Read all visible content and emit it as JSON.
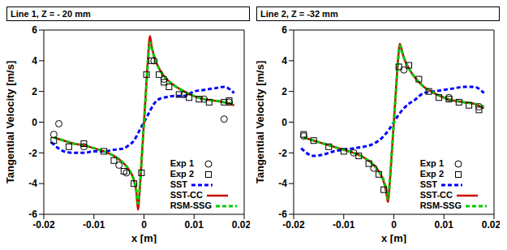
{
  "chart_data": [
    {
      "type": "line",
      "title": "Line 1, Z = - 20 mm",
      "x_label": "x [m]",
      "y_label": "Tangential Velocity [m/s]",
      "xlim": [
        -0.02,
        0.02
      ],
      "xticks": [
        -0.02,
        -0.01,
        0,
        0.01,
        0.02
      ],
      "ylim": [
        -6,
        6
      ],
      "yticks": [
        -6,
        -4,
        -2,
        0,
        2,
        4,
        6
      ],
      "grid": false,
      "legend": "lower right",
      "series": [
        {
          "name": "Exp 1",
          "type": "scatter",
          "marker": "circle",
          "color": "#000000",
          "x": [
            -0.018,
            -0.017,
            -0.012,
            -0.005,
            -0.0035,
            0.002,
            0.004,
            0.008,
            0.012,
            0.016,
            0.017
          ],
          "values": [
            -0.8,
            -0.1,
            -1.6,
            -2.8,
            -3.3,
            4.0,
            2.8,
            1.8,
            1.5,
            0.2,
            1.3
          ]
        },
        {
          "name": "Exp 2",
          "type": "scatter",
          "marker": "square",
          "color": "#000000",
          "x": [
            -0.018,
            -0.015,
            -0.012,
            -0.008,
            -0.006,
            -0.004,
            -0.002,
            -0.0005,
            0.0005,
            0.0015,
            0.003,
            0.004,
            0.005,
            0.007,
            0.009,
            0.011,
            0.013,
            0.016,
            0.017
          ],
          "values": [
            -1.2,
            -1.6,
            -1.4,
            -1.9,
            -2.5,
            -3.2,
            -4.0,
            -3.3,
            3.1,
            4.0,
            3.1,
            2.6,
            2.3,
            1.8,
            1.6,
            1.5,
            1.3,
            1.3,
            1.4
          ]
        },
        {
          "name": "SST",
          "type": "line",
          "line_style": "dashed",
          "color": "#0000ff",
          "x": [
            -0.0185,
            -0.016,
            -0.014,
            -0.012,
            -0.01,
            -0.008,
            -0.006,
            -0.004,
            -0.003,
            -0.002,
            -0.001,
            0,
            0.001,
            0.002,
            0.003,
            0.004,
            0.006,
            0.008,
            0.01,
            0.012,
            0.014,
            0.016,
            0.018
          ],
          "values": [
            -1.3,
            -1.9,
            -2.0,
            -2.0,
            -1.9,
            -1.9,
            -1.8,
            -1.7,
            -1.5,
            -1.2,
            -0.6,
            0,
            0.6,
            1.2,
            1.5,
            1.6,
            1.7,
            1.7,
            2.0,
            2.1,
            2.2,
            2.3,
            1.9
          ]
        },
        {
          "name": "SST-CC",
          "type": "line",
          "line_style": "solid",
          "color": "#cc0000",
          "x": [
            -0.018,
            -0.016,
            -0.014,
            -0.012,
            -0.01,
            -0.008,
            -0.006,
            -0.004,
            -0.003,
            -0.002,
            -0.0015,
            -0.0012,
            -0.0008,
            -0.0004,
            0,
            0.0004,
            0.0008,
            0.0012,
            0.0015,
            0.002,
            0.003,
            0.004,
            0.006,
            0.008,
            0.01,
            0.012,
            0.014,
            0.016,
            0.018
          ],
          "values": [
            -1.0,
            -1.2,
            -1.4,
            -1.5,
            -1.7,
            -1.9,
            -2.2,
            -2.7,
            -3.1,
            -3.8,
            -4.6,
            -5.7,
            -4.2,
            -2.1,
            0,
            2.1,
            4.2,
            5.6,
            5.0,
            4.3,
            3.5,
            3.0,
            2.4,
            2.0,
            1.7,
            1.5,
            1.4,
            1.3,
            1.1
          ]
        },
        {
          "name": "RSM-SSG",
          "type": "line",
          "line_style": "dashed",
          "color": "#00cc00",
          "x": [
            -0.018,
            -0.016,
            -0.014,
            -0.012,
            -0.01,
            -0.008,
            -0.006,
            -0.004,
            -0.003,
            -0.002,
            -0.0015,
            -0.0012,
            -0.0008,
            -0.0004,
            0,
            0.0004,
            0.0008,
            0.0012,
            0.0015,
            0.002,
            0.003,
            0.004,
            0.006,
            0.008,
            0.01,
            0.012,
            0.014,
            0.016,
            0.018
          ],
          "values": [
            -1.0,
            -1.2,
            -1.4,
            -1.5,
            -1.7,
            -1.9,
            -2.2,
            -2.7,
            -3.1,
            -3.8,
            -4.5,
            -5.3,
            -4.0,
            -2.0,
            0,
            2.0,
            4.0,
            5.2,
            4.9,
            4.3,
            3.5,
            3.0,
            2.4,
            2.0,
            1.7,
            1.5,
            1.4,
            1.3,
            1.2
          ]
        }
      ]
    },
    {
      "type": "line",
      "title": "Line 2, Z = -32 mm",
      "x_label": "x [m]",
      "y_label": "Tangential Velocity [m/s]",
      "xlim": [
        -0.02,
        0.02
      ],
      "xticks": [
        -0.02,
        -0.01,
        0,
        0.01,
        0.02
      ],
      "ylim": [
        -6,
        6
      ],
      "yticks": [
        -6,
        -4,
        -2,
        0,
        2,
        4,
        6
      ],
      "grid": false,
      "legend": "lower right",
      "series": [
        {
          "name": "Exp 1",
          "type": "scatter",
          "marker": "circle",
          "color": "#000000",
          "x": [
            -0.018,
            -0.008,
            -0.004,
            0.002,
            0.011,
            0.017
          ],
          "values": [
            -0.9,
            -2.0,
            -3.0,
            3.4,
            1.6,
            1.0
          ]
        },
        {
          "name": "Exp 2",
          "type": "scatter",
          "marker": "square",
          "color": "#000000",
          "x": [
            -0.018,
            -0.016,
            -0.013,
            -0.01,
            -0.007,
            -0.005,
            -0.003,
            -0.002,
            0.001,
            0.003,
            0.005,
            0.007,
            0.009,
            0.011,
            0.013,
            0.015,
            0.017
          ],
          "values": [
            -0.8,
            -1.2,
            -1.6,
            -1.9,
            -2.2,
            -2.7,
            -3.4,
            -4.4,
            3.6,
            3.7,
            2.8,
            2.0,
            1.6,
            1.5,
            1.3,
            1.1,
            0.8
          ]
        },
        {
          "name": "SST",
          "type": "line",
          "line_style": "dashed",
          "color": "#0000ff",
          "x": [
            -0.0185,
            -0.016,
            -0.014,
            -0.012,
            -0.01,
            -0.008,
            -0.006,
            -0.004,
            -0.003,
            -0.002,
            -0.001,
            0,
            0.001,
            0.002,
            0.003,
            0.004,
            0.006,
            0.008,
            0.01,
            0.012,
            0.014,
            0.016,
            0.018
          ],
          "values": [
            -1.7,
            -2.2,
            -2.1,
            -1.9,
            -1.8,
            -1.7,
            -1.6,
            -1.4,
            -1.2,
            -0.9,
            -0.5,
            0,
            0.5,
            0.9,
            1.2,
            1.4,
            1.9,
            2.0,
            2.1,
            2.2,
            2.3,
            2.3,
            1.9
          ]
        },
        {
          "name": "SST-CC",
          "type": "line",
          "line_style": "solid",
          "color": "#cc0000",
          "x": [
            -0.018,
            -0.016,
            -0.014,
            -0.012,
            -0.01,
            -0.008,
            -0.006,
            -0.004,
            -0.003,
            -0.002,
            -0.0015,
            -0.0012,
            -0.0008,
            -0.0004,
            0,
            0.0004,
            0.0008,
            0.0012,
            0.0015,
            0.002,
            0.003,
            0.004,
            0.006,
            0.008,
            0.01,
            0.012,
            0.014,
            0.016,
            0.018
          ],
          "values": [
            -1.0,
            -1.2,
            -1.4,
            -1.6,
            -1.8,
            -2.0,
            -2.3,
            -2.8,
            -3.2,
            -3.9,
            -4.6,
            -5.2,
            -3.9,
            -2.0,
            0,
            2.0,
            3.9,
            5.1,
            4.8,
            4.2,
            3.5,
            3.0,
            2.3,
            1.9,
            1.6,
            1.4,
            1.3,
            1.2,
            0.9
          ]
        },
        {
          "name": "RSM-SSG",
          "type": "line",
          "line_style": "dashed",
          "color": "#00cc00",
          "x": [
            -0.018,
            -0.016,
            -0.014,
            -0.012,
            -0.01,
            -0.008,
            -0.006,
            -0.004,
            -0.003,
            -0.002,
            -0.0015,
            -0.0012,
            -0.0008,
            -0.0004,
            0,
            0.0004,
            0.0008,
            0.0012,
            0.0015,
            0.002,
            0.003,
            0.004,
            0.006,
            0.008,
            0.01,
            0.012,
            0.014,
            0.016,
            0.018
          ],
          "values": [
            -1.0,
            -1.2,
            -1.4,
            -1.6,
            -1.8,
            -2.0,
            -2.3,
            -2.8,
            -3.2,
            -3.8,
            -4.4,
            -5.0,
            -3.8,
            -1.9,
            0,
            1.9,
            3.8,
            5.0,
            4.7,
            4.2,
            3.5,
            3.0,
            2.3,
            1.9,
            1.6,
            1.4,
            1.3,
            1.2,
            1.0
          ]
        }
      ]
    }
  ]
}
